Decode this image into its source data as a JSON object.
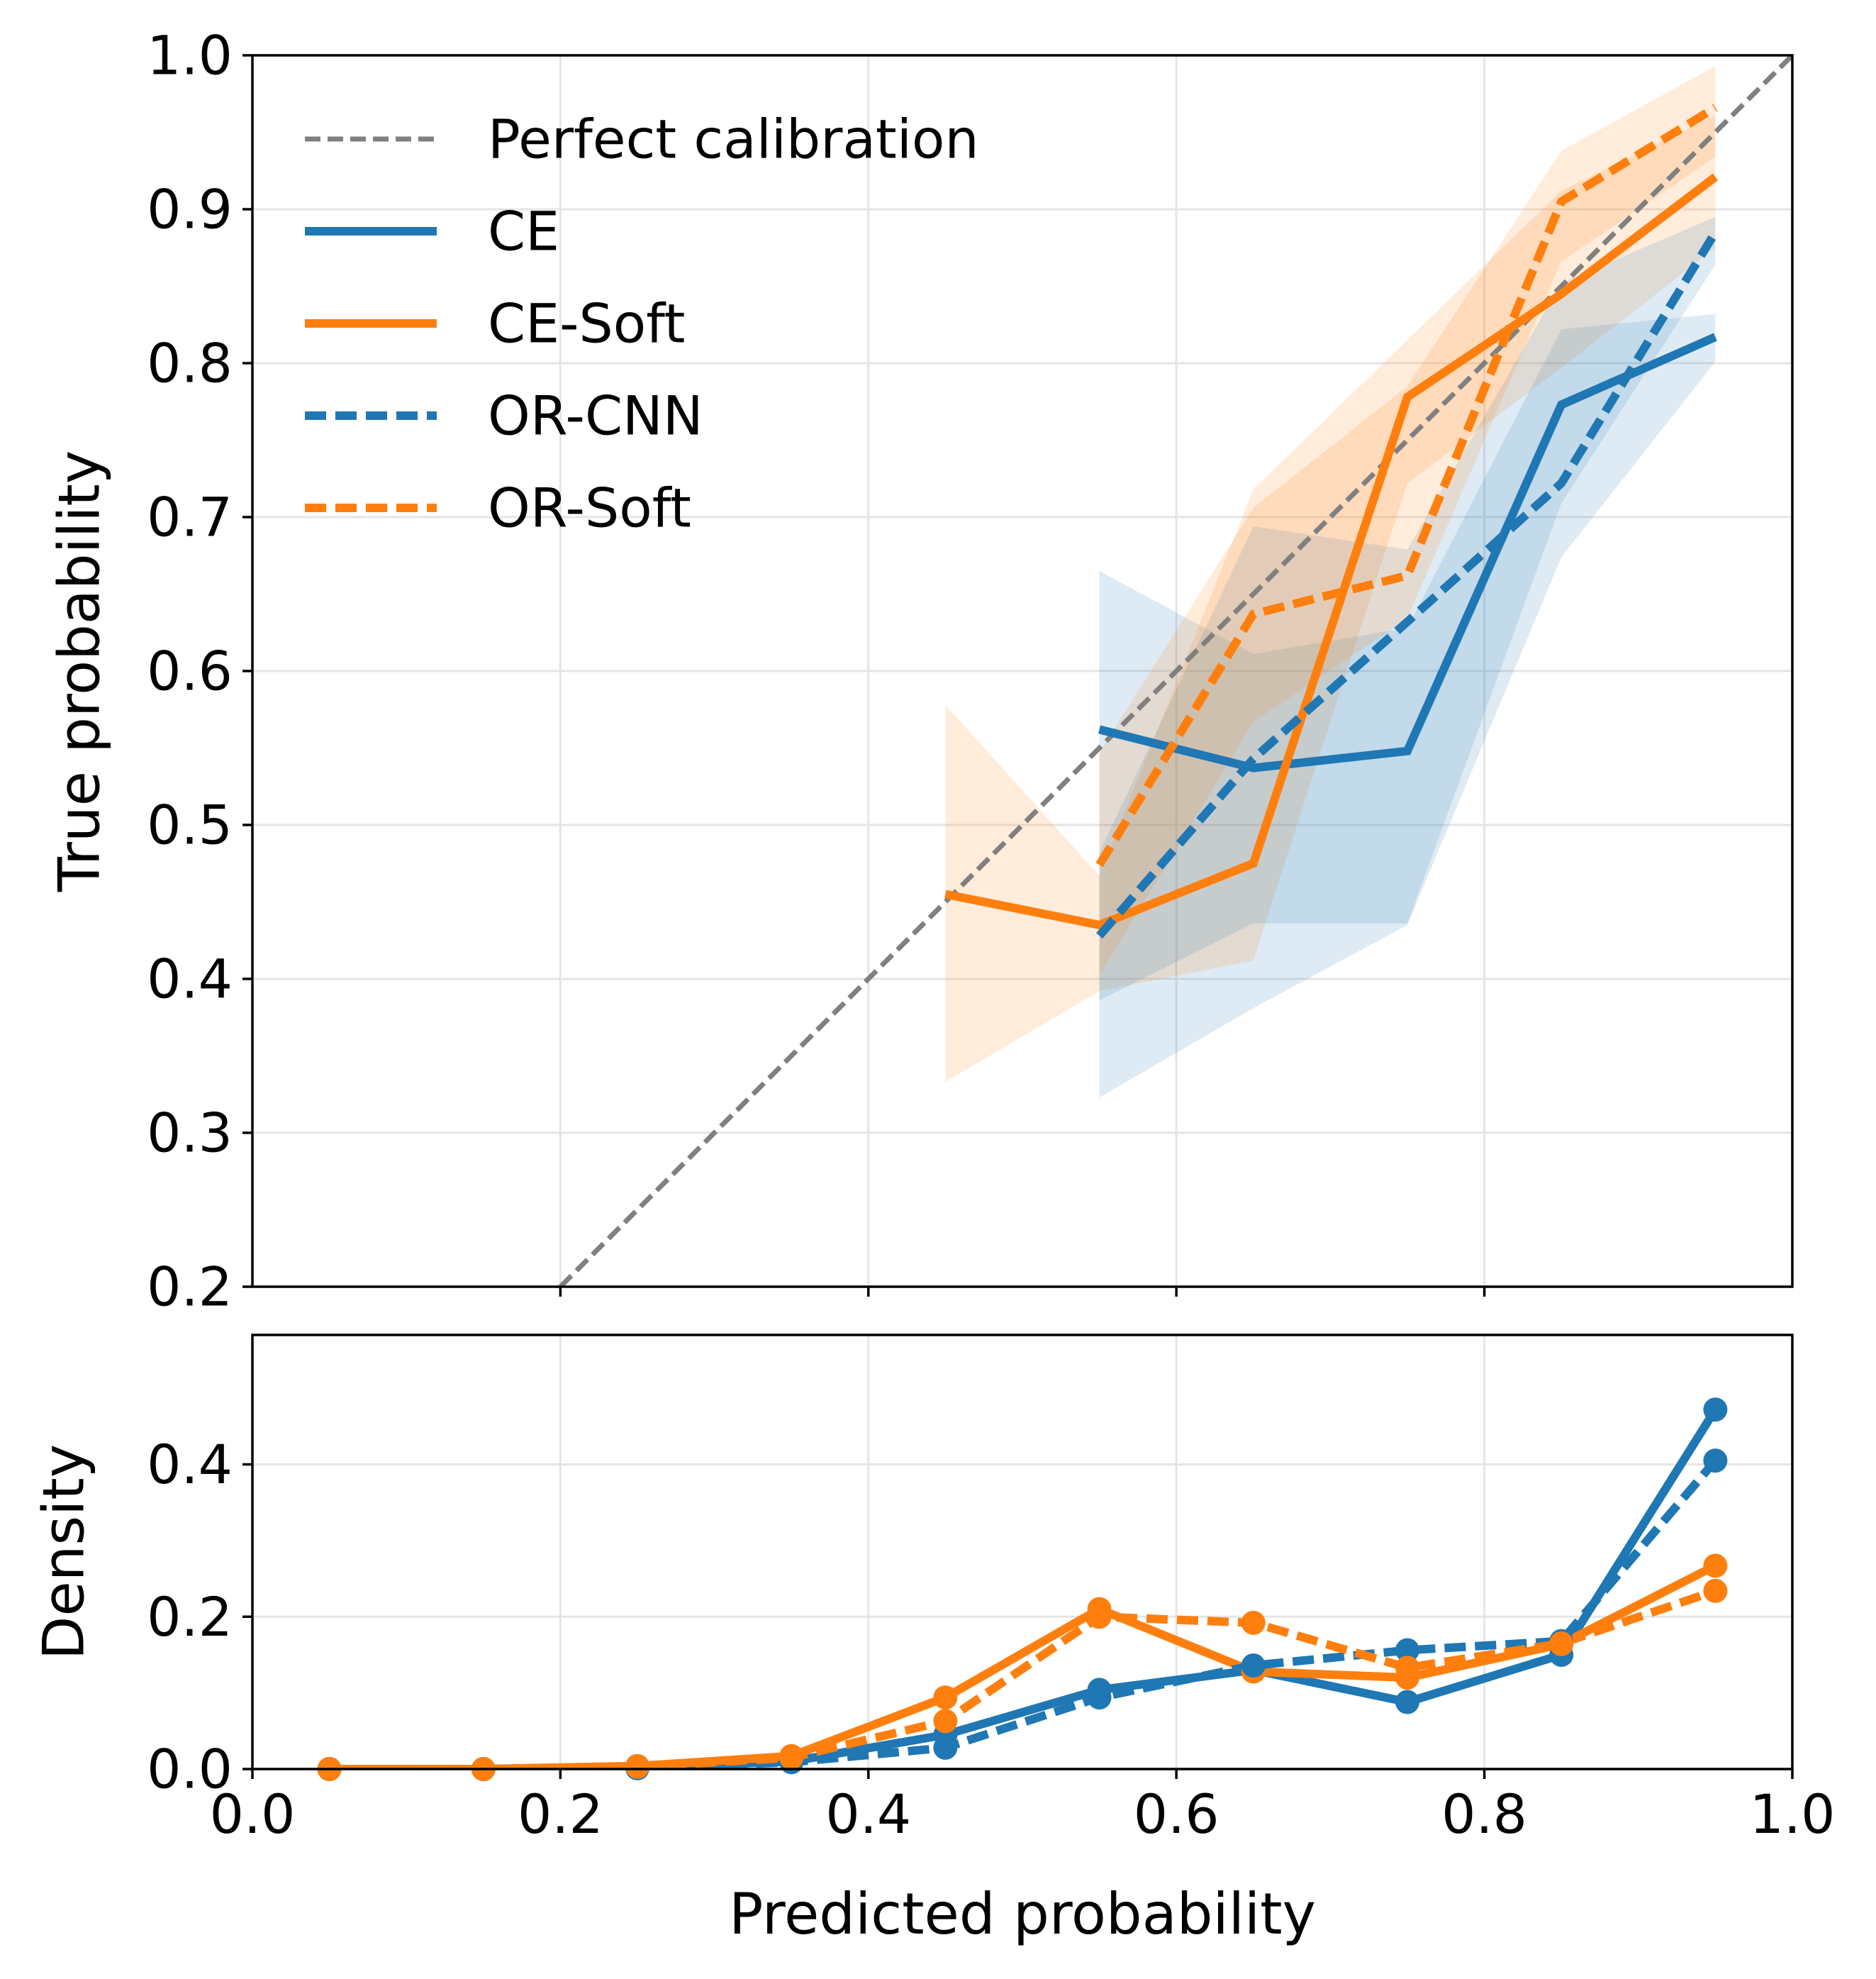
{
  "chart_data": [
    {
      "type": "line",
      "panel": "calibration",
      "ylabel": "True probability",
      "xlim": [
        0.0,
        1.0
      ],
      "ylim": [
        0.2,
        1.0
      ],
      "grid": true,
      "legend_placement": "top-left",
      "x_ticks": [
        0.2,
        0.4,
        0.6,
        0.8
      ],
      "y_ticks": [
        0.2,
        0.3,
        0.4,
        0.5,
        0.6,
        0.7,
        0.8,
        0.9,
        1.0
      ],
      "y_tick_labels": [
        "0.2",
        "0.3",
        "0.4",
        "0.5",
        "0.6",
        "0.7",
        "0.8",
        "0.9",
        "1.0"
      ],
      "reference": {
        "name": "Perfect calibration",
        "color": "#808080",
        "style": "dashed",
        "x": [
          0.2,
          1.0
        ],
        "y": [
          0.2,
          1.0
        ]
      },
      "series": [
        {
          "name": "CE",
          "color": "#1f77b4",
          "style": "solid",
          "x": [
            0.55,
            0.65,
            0.75,
            0.85,
            0.95
          ],
          "y": [
            0.562,
            0.537,
            0.548,
            0.773,
            0.817
          ],
          "lower": [
            0.323,
            0.381,
            0.435,
            0.674,
            0.801
          ],
          "upper": [
            0.665,
            0.611,
            0.628,
            0.822,
            0.832
          ]
        },
        {
          "name": "CE-Soft",
          "color": "#ff7f0e",
          "style": "solid",
          "x": [
            0.45,
            0.55,
            0.65,
            0.75,
            0.85,
            0.95
          ],
          "y": [
            0.455,
            0.435,
            0.475,
            0.778,
            0.845,
            0.921
          ],
          "lower": [
            0.333,
            0.392,
            0.412,
            0.722,
            0.797,
            0.875
          ],
          "upper": [
            0.578,
            0.467,
            0.718,
            0.815,
            0.912,
            0.961
          ]
        },
        {
          "name": "OR-CNN",
          "color": "#1f77b4",
          "style": "dashed",
          "x": [
            0.55,
            0.65,
            0.75,
            0.85,
            0.95
          ],
          "y": [
            0.428,
            0.543,
            0.632,
            0.722,
            0.885
          ],
          "lower": [
            0.386,
            0.436,
            0.436,
            0.709,
            0.864
          ],
          "upper": [
            0.482,
            0.694,
            0.679,
            0.852,
            0.895
          ]
        },
        {
          "name": "OR-Soft",
          "color": "#ff7f0e",
          "style": "dashed",
          "x": [
            0.55,
            0.65,
            0.75,
            0.85,
            0.95
          ],
          "y": [
            0.474,
            0.637,
            0.662,
            0.905,
            0.966
          ],
          "lower": [
            0.402,
            0.567,
            0.634,
            0.866,
            0.934
          ],
          "upper": [
            0.547,
            0.706,
            0.785,
            0.938,
            0.993
          ]
        }
      ]
    },
    {
      "type": "line",
      "panel": "density",
      "xlabel": "Predicted probability",
      "ylabel": "Density",
      "xlim": [
        0.0,
        1.0
      ],
      "ylim": [
        0.0,
        0.57
      ],
      "grid": true,
      "markers": "circle",
      "x_ticks": [
        0.0,
        0.2,
        0.4,
        0.6,
        0.8,
        1.0
      ],
      "x_tick_labels": [
        "0.0",
        "0.2",
        "0.4",
        "0.6",
        "0.8",
        "1.0"
      ],
      "y_ticks": [
        0.0,
        0.2,
        0.4
      ],
      "y_tick_labels": [
        "0.0",
        "0.2",
        "0.4"
      ],
      "series": [
        {
          "name": "CE",
          "color": "#1f77b4",
          "style": "solid",
          "x": [
            0.05,
            0.15,
            0.25,
            0.35,
            0.45,
            0.55,
            0.65,
            0.75,
            0.85,
            0.95
          ],
          "y": [
            0.0,
            0.0,
            0.002,
            0.01,
            0.045,
            0.104,
            0.13,
            0.088,
            0.15,
            0.472
          ]
        },
        {
          "name": "CE-Soft",
          "color": "#ff7f0e",
          "style": "solid",
          "x": [
            0.05,
            0.15,
            0.25,
            0.35,
            0.45,
            0.55,
            0.65,
            0.75,
            0.85,
            0.95
          ],
          "y": [
            0.0,
            0.0,
            0.004,
            0.017,
            0.094,
            0.21,
            0.128,
            0.12,
            0.164,
            0.267
          ]
        },
        {
          "name": "OR-CNN",
          "color": "#1f77b4",
          "style": "dashed",
          "x": [
            0.05,
            0.15,
            0.25,
            0.35,
            0.45,
            0.55,
            0.65,
            0.75,
            0.85,
            0.95
          ],
          "y": [
            0.0,
            0.0,
            0.001,
            0.009,
            0.028,
            0.094,
            0.136,
            0.156,
            0.168,
            0.405
          ]
        },
        {
          "name": "OR-Soft",
          "color": "#ff7f0e",
          "style": "dashed",
          "x": [
            0.05,
            0.15,
            0.25,
            0.35,
            0.45,
            0.55,
            0.65,
            0.75,
            0.85,
            0.95
          ],
          "y": [
            0.0,
            0.0,
            0.003,
            0.015,
            0.063,
            0.2,
            0.192,
            0.133,
            0.165,
            0.234
          ]
        }
      ]
    }
  ]
}
